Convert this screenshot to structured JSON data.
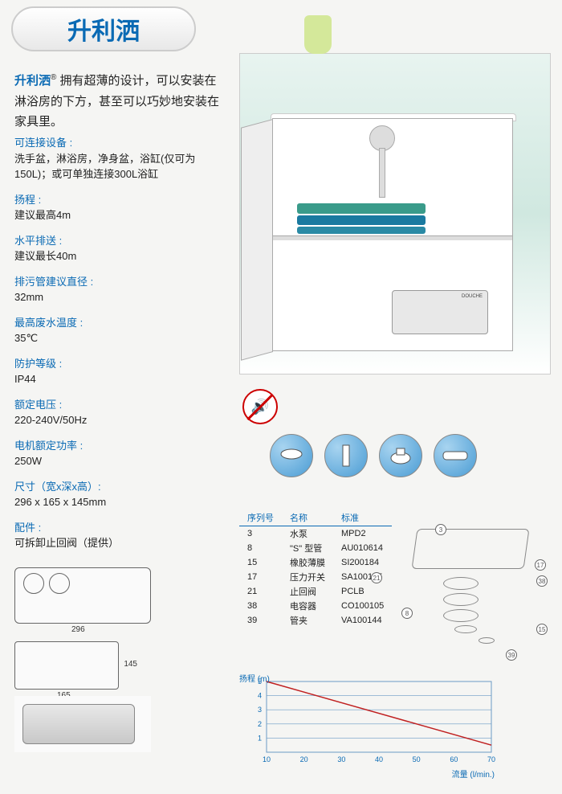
{
  "brand": {
    "logo_text": "升利洒",
    "name": "升利洒",
    "reg": "®"
  },
  "intro": " 拥有超薄的设计，可以安装在淋浴房的下方，甚至可以巧妙地安装在家具里。",
  "specs": [
    {
      "label": "可连接设备 :",
      "value": "洗手盆，淋浴房，净身盆，浴缸(仅可为150L)；或可单独连接300L浴缸"
    },
    {
      "label": "扬程 :",
      "value": "建议最高4m"
    },
    {
      "label": "水平排送 :",
      "value": "建议最长40m"
    },
    {
      "label": "排污管建议直径 :",
      "value": "32mm"
    },
    {
      "label": "最高废水温度 :",
      "value": "35℃"
    },
    {
      "label": "防护等级 :",
      "value": "IP44"
    },
    {
      "label": "额定电压 :",
      "value": "220-240V/50Hz"
    },
    {
      "label": "电机额定功率 :",
      "value": "250W"
    },
    {
      "label": "尺寸（宽x深x高）:",
      "value": "296 x 165 x 145mm"
    },
    {
      "label": "配件 :",
      "value": "可拆卸止回阀（提供）"
    }
  ],
  "photo": {
    "pump_label": "DOUCHE",
    "towel_colors": [
      "#3a9b8a",
      "#1a7aa0",
      "#2a8aa5"
    ],
    "vase_color": "#d4e89a"
  },
  "feature_icons": [
    "sink",
    "shower",
    "bidet",
    "bath"
  ],
  "dimensions": {
    "width": "296",
    "depth": "165",
    "height": "145"
  },
  "parts_table": {
    "headers": [
      "序列号",
      "名称",
      "标准"
    ],
    "rows": [
      [
        "3",
        "水泵",
        "MPD2"
      ],
      [
        "8",
        "\"S\" 型管",
        "AU010614"
      ],
      [
        "15",
        "橡胶薄膜",
        "SI200184"
      ],
      [
        "17",
        "压力开关",
        "SA100125"
      ],
      [
        "21",
        "止回阀",
        "PCLB"
      ],
      [
        "38",
        "电容器",
        "CO100105"
      ],
      [
        "39",
        "管夹",
        "VA100144"
      ]
    ]
  },
  "exploded_labels": [
    "3",
    "8",
    "15",
    "17",
    "21",
    "38",
    "39"
  ],
  "chart": {
    "y_label": "扬程 (m)",
    "x_label": "流量 (l/min.)",
    "y_ticks": [
      "1",
      "2",
      "3",
      "4",
      "5"
    ],
    "x_ticks": [
      "10",
      "20",
      "30",
      "40",
      "50",
      "60",
      "70"
    ],
    "line_data": [
      [
        10,
        5
      ],
      [
        70,
        0.5
      ]
    ],
    "line_color": "#c02020",
    "grid_color": "#6a9ac4",
    "ylim": [
      0,
      5
    ],
    "xlim": [
      10,
      70
    ]
  },
  "colors": {
    "accent": "#0a6ab4",
    "text": "#222222",
    "bg": "#f5f5f3"
  }
}
